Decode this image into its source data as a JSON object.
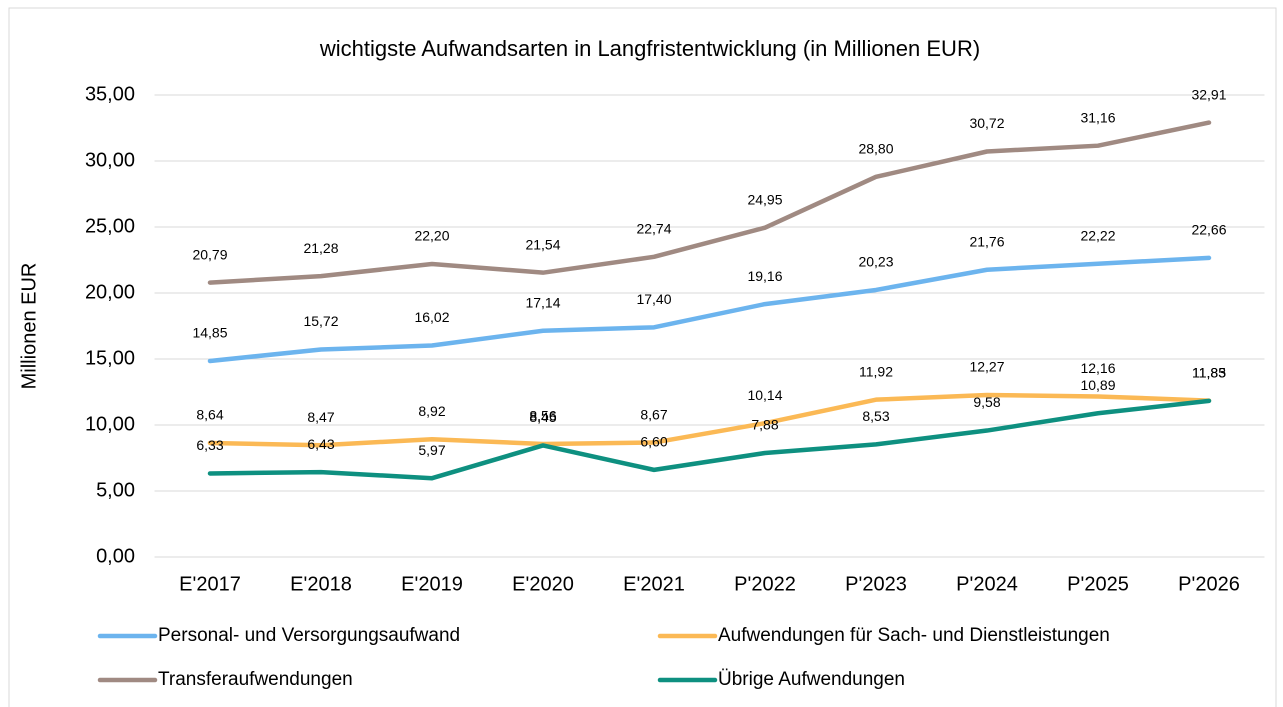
{
  "chart_data": {
    "type": "line",
    "title": "wichtigste Aufwandsarten in Langfristentwicklung (in Millionen EUR)",
    "y_label": "Millionen EUR",
    "categories": [
      "E'2017",
      "E'2018",
      "E'2019",
      "E'2020",
      "E'2021",
      "P'2022",
      "P'2023",
      "P'2024",
      "P'2025",
      "P'2026"
    ],
    "series": [
      {
        "name": "Personal- und Versorgungsaufwand",
        "color": "#6cb4ee",
        "values": [
          14.85,
          15.72,
          16.02,
          17.14,
          17.4,
          19.16,
          20.23,
          21.76,
          22.22,
          22.66
        ],
        "value_labels": [
          "14,85",
          "15,72",
          "16,02",
          "17,14",
          "17,40",
          "19,16",
          "20,23",
          "21,76",
          "22,22",
          "22,66"
        ]
      },
      {
        "name": "Aufwendungen für Sach- und Dienstleistungen",
        "color": "#fbb955",
        "values": [
          8.64,
          8.47,
          8.92,
          8.56,
          8.67,
          10.14,
          11.92,
          12.27,
          12.16,
          11.85
        ],
        "value_labels": [
          "8,64",
          "8,47",
          "8,92",
          "8,56",
          "8,67",
          "10,14",
          "11,92",
          "12,27",
          "12,16",
          "11,85"
        ]
      },
      {
        "name": "Transferaufwendungen",
        "color": "#a08a82",
        "values": [
          20.79,
          21.28,
          22.2,
          21.54,
          22.74,
          24.95,
          28.8,
          30.72,
          31.16,
          32.91
        ],
        "value_labels": [
          "20,79",
          "21,28",
          "22,20",
          "21,54",
          "22,74",
          "24,95",
          "28,80",
          "30,72",
          "31,16",
          "32,91"
        ]
      },
      {
        "name": "Übrige Aufwendungen",
        "color": "#0e9080",
        "values": [
          6.33,
          6.43,
          5.97,
          8.45,
          6.6,
          7.88,
          8.53,
          9.58,
          10.89,
          11.83
        ],
        "value_labels": [
          "6,33",
          "6,43",
          "5,97",
          "8,45",
          "6,60",
          "7,88",
          "8,53",
          "9,58",
          "10,89",
          "11,83"
        ]
      }
    ],
    "ylim": [
      0,
      35
    ],
    "yticks": [
      {
        "value": 0,
        "label": "0,00"
      },
      {
        "value": 5,
        "label": "5,00"
      },
      {
        "value": 10,
        "label": "10,00"
      },
      {
        "value": 15,
        "label": "15,00"
      },
      {
        "value": 20,
        "label": "20,00"
      },
      {
        "value": 25,
        "label": "25,00"
      },
      {
        "value": 30,
        "label": "30,00"
      },
      {
        "value": 35,
        "label": "35,00"
      }
    ],
    "grid": true,
    "legend": "bottom"
  }
}
